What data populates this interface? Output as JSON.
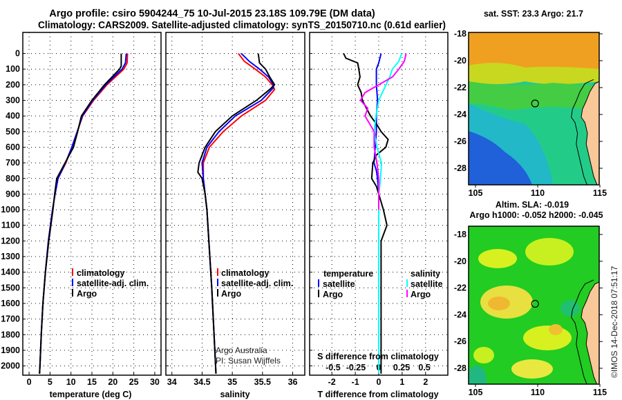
{
  "title": {
    "line1": "Argo profile: csiro 5904244_75 10-Jul-2015 23.18S 109.79E (DM data)",
    "line2": "Climatology: CARS2009. Satellite-adjusted climatology: synTS_20150710.nc (0.61d earlier)"
  },
  "colors": {
    "climatology": "#ff0000",
    "satellite": "#0000ff",
    "argo": "#000000",
    "sal_satellite": "#00ffff",
    "sal_argo": "#ff00ff"
  },
  "chart_data": [
    {
      "type": "line",
      "title": "",
      "xlabel": "temperature (deg C)",
      "ylabel": "depth",
      "xlim": [
        -1.5,
        31.5
      ],
      "ylim": [
        2110,
        -135
      ],
      "xticks": [
        0,
        5,
        10,
        15,
        20,
        25,
        30
      ],
      "yticks": [
        0,
        100,
        200,
        300,
        400,
        500,
        600,
        700,
        800,
        900,
        1000,
        1100,
        1200,
        1300,
        1400,
        1500,
        1600,
        1700,
        1800,
        1900,
        2000
      ],
      "legend": [
        "climatology",
        "satellite-adj. clim.",
        "Argo"
      ],
      "series": [
        {
          "name": "climatology",
          "color": "#ff0000",
          "depth": [
            0,
            60,
            100,
            150,
            200,
            300,
            400,
            500,
            600,
            700,
            800,
            900,
            1000,
            1200,
            1400,
            1600,
            1800,
            2000,
            2050
          ],
          "values": [
            23.5,
            23.4,
            22.6,
            20.6,
            18.6,
            15.4,
            12.8,
            11.5,
            10.2,
            8.8,
            6.9,
            6.2,
            5.6,
            4.6,
            3.9,
            3.3,
            2.9,
            2.6,
            2.5
          ]
        },
        {
          "name": "satellite-adj. clim.",
          "color": "#0000ff",
          "depth": [
            0,
            60,
            100,
            150,
            200,
            300,
            400,
            500,
            600,
            700,
            800,
            900,
            1000,
            1200,
            1400,
            1600,
            1800,
            2000,
            2050
          ],
          "values": [
            23.2,
            23.0,
            22.2,
            20.2,
            18.3,
            15.2,
            12.7,
            11.5,
            10.2,
            8.7,
            6.9,
            6.2,
            5.6,
            4.6,
            3.9,
            3.3,
            2.9,
            2.6,
            2.5
          ]
        },
        {
          "name": "Argo",
          "color": "#000000",
          "depth": [
            0,
            80,
            100,
            150,
            200,
            300,
            400,
            500,
            600,
            700,
            800,
            900,
            1000,
            1200,
            1400,
            1600,
            1800,
            2000,
            2050
          ],
          "values": [
            22.0,
            22.0,
            21.6,
            19.8,
            18.0,
            15.0,
            12.5,
            11.6,
            10.6,
            8.6,
            6.6,
            6.1,
            5.7,
            4.7,
            3.9,
            3.3,
            2.9,
            2.6,
            2.5
          ]
        }
      ]
    },
    {
      "type": "line",
      "xlabel": "salinity",
      "xlim": [
        33.9,
        36.2
      ],
      "ylim": [
        2110,
        -135
      ],
      "xticks": [
        34,
        34.5,
        35,
        35.5,
        36
      ],
      "legend": [
        "climatology",
        "satellite-adj. clim.",
        "Argo"
      ],
      "annotations": [
        "Argo Australia",
        "PI: Susan Wijffels"
      ],
      "series": [
        {
          "name": "climatology",
          "color": "#ff0000",
          "depth": [
            0,
            50,
            100,
            150,
            200,
            230,
            300,
            400,
            500,
            600,
            700,
            800,
            900,
            1000,
            1500,
            2050
          ],
          "values": [
            35.1,
            35.2,
            35.38,
            35.55,
            35.66,
            35.7,
            35.55,
            35.15,
            34.85,
            34.62,
            34.52,
            34.52,
            34.55,
            34.58,
            34.66,
            34.73
          ]
        },
        {
          "name": "satellite-adj. clim.",
          "color": "#0000ff",
          "depth": [
            0,
            50,
            100,
            150,
            200,
            220,
            300,
            400,
            500,
            600,
            700,
            800,
            900,
            1000,
            1500,
            2050
          ],
          "values": [
            35.15,
            35.28,
            35.45,
            35.6,
            35.68,
            35.68,
            35.48,
            35.05,
            34.78,
            34.58,
            34.5,
            34.52,
            34.55,
            34.58,
            34.66,
            34.73
          ]
        },
        {
          "name": "Argo",
          "color": "#000000",
          "depth": [
            0,
            60,
            100,
            150,
            200,
            230,
            300,
            400,
            500,
            600,
            700,
            760,
            800,
            900,
            1000,
            1500,
            2050
          ],
          "values": [
            35.43,
            35.45,
            35.55,
            35.62,
            35.7,
            35.62,
            35.4,
            35.0,
            34.72,
            34.55,
            34.45,
            34.43,
            34.5,
            34.55,
            34.58,
            34.66,
            34.73
          ]
        }
      ]
    },
    {
      "type": "line",
      "xlabel": "T difference from climatology",
      "xlim": [
        -2.95,
        2.95
      ],
      "ylim": [
        2110,
        -135
      ],
      "xticks": [
        -2,
        -1,
        0,
        1,
        2
      ],
      "secondary_xlabel": "S difference from climatology",
      "secondary_xticks": [
        -0.5,
        -0.25,
        0,
        0.25,
        0.5
      ],
      "secondary_xtick_labels": [
        "-0.5",
        "-0.25",
        "0",
        "0.25",
        "0.5"
      ],
      "legend": {
        "temperature_heading": "temperature",
        "salinity_heading": "salinity",
        "t_satellite": "satellite",
        "t_argo": "Argo",
        "s_satellite": "satellite",
        "s_argo": "Argo"
      },
      "series": [
        {
          "name": "T satellite",
          "color": "#0000ff",
          "axis": "T",
          "depth": [
            0,
            60,
            100,
            200,
            300,
            400,
            500,
            600,
            700,
            750,
            800,
            900,
            1000,
            2050
          ],
          "values": [
            0.1,
            0.0,
            -0.1,
            -0.1,
            -0.05,
            -0.1,
            -0.1,
            -0.15,
            -0.2,
            -0.1,
            -0.05,
            0.0,
            0.0,
            0.0
          ]
        },
        {
          "name": "T Argo",
          "color": "#000000",
          "axis": "T",
          "depth": [
            0,
            30,
            60,
            100,
            150,
            200,
            250,
            300,
            400,
            450,
            500,
            550,
            600,
            650,
            700,
            800,
            850,
            900,
            1000,
            1100,
            1200,
            1400,
            2050
          ],
          "values": [
            -1.5,
            -1.4,
            -0.9,
            -0.85,
            -0.8,
            -0.9,
            -0.75,
            -0.7,
            -0.35,
            -0.1,
            0.1,
            0.4,
            0.3,
            -0.1,
            -0.25,
            -0.3,
            -0.1,
            0.0,
            0.2,
            0.35,
            0.1,
            0.1,
            0.1
          ]
        },
        {
          "name": "S satellite",
          "color": "#00ffff",
          "axis": "S",
          "depth": [
            0,
            50,
            100,
            150,
            200,
            300,
            400,
            500,
            600,
            700,
            800,
            900,
            2050
          ],
          "values": [
            0.25,
            0.22,
            0.15,
            0.12,
            0.08,
            0.0,
            -0.03,
            -0.05,
            -0.02,
            0.03,
            0.02,
            0.0,
            0.0
          ]
        },
        {
          "name": "S Argo",
          "color": "#ff00ff",
          "axis": "S",
          "depth": [
            0,
            50,
            100,
            150,
            200,
            250,
            300,
            350,
            400,
            500,
            600,
            700,
            800,
            900,
            1000
          ],
          "values": [
            0.3,
            0.28,
            0.22,
            0.15,
            0.0,
            -0.15,
            -0.2,
            -0.12,
            -0.15,
            -0.05,
            -0.05,
            -0.02,
            0.0,
            0.0,
            0.0
          ]
        }
      ]
    }
  ],
  "maps": [
    {
      "title": "sat. SST: 23.3 Argo: 21.7",
      "lon_ticks": [
        105,
        110,
        115
      ],
      "lat_ticks": [
        -18,
        -20,
        -22,
        -24,
        -26,
        -28
      ],
      "marker": {
        "lat": -23.18,
        "lon": 109.79
      }
    },
    {
      "title_line1": "Altim. SLA: -0.019",
      "title_line2": "Argo h1000: -0.052 h2000: -0.045",
      "lon_ticks": [
        105,
        110,
        115
      ],
      "lat_ticks": [
        -18,
        -20,
        -22,
        -24,
        -26,
        -28
      ],
      "marker": {
        "lat": -23.18,
        "lon": 109.79
      }
    }
  ],
  "watermark": "©IMOS 14-Dec-2018 07:51:17"
}
